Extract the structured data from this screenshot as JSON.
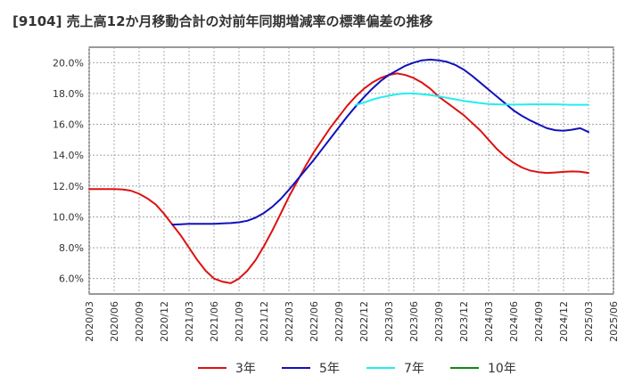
{
  "chart_data": {
    "type": "line",
    "title": "[9104]  売上高12か月移動合計の対前年同期増減率の標準偏差の推移",
    "xlabel": "",
    "ylabel": "",
    "x": [
      "2020/03",
      "2020/06",
      "2020/09",
      "2020/12",
      "2021/03",
      "2021/06",
      "2021/09",
      "2021/12",
      "2022/03",
      "2022/06",
      "2022/09",
      "2022/12",
      "2023/03",
      "2023/06",
      "2023/09",
      "2023/12",
      "2024/03",
      "2024/06",
      "2024/09",
      "2024/12",
      "2025/03",
      "2025/06"
    ],
    "ylim": [
      5.0,
      21.0
    ],
    "yticks": [
      6,
      8,
      10,
      12,
      14,
      16,
      18,
      20
    ],
    "ytick_labels": [
      "6.0%",
      "8.0%",
      "10.0%",
      "12.0%",
      "14.0%",
      "16.0%",
      "18.0%",
      "20.0%"
    ],
    "grid": true,
    "legend_position": "bottom",
    "series": [
      {
        "name": "3年",
        "color": "#dd1111",
        "points": [
          [
            "2020/03",
            11.8
          ],
          [
            "2020/04",
            11.8
          ],
          [
            "2020/05",
            11.8
          ],
          [
            "2020/06",
            11.8
          ],
          [
            "2020/07",
            11.78
          ],
          [
            "2020/08",
            11.7
          ],
          [
            "2020/09",
            11.5
          ],
          [
            "2020/10",
            11.2
          ],
          [
            "2020/11",
            10.8
          ],
          [
            "2020/12",
            10.2
          ],
          [
            "2021/01",
            9.5
          ],
          [
            "2021/02",
            8.8
          ],
          [
            "2021/03",
            8.0
          ],
          [
            "2021/04",
            7.2
          ],
          [
            "2021/05",
            6.5
          ],
          [
            "2021/06",
            6.0
          ],
          [
            "2021/07",
            5.8
          ],
          [
            "2021/08",
            5.7
          ],
          [
            "2021/09",
            6.0
          ],
          [
            "2021/10",
            6.5
          ],
          [
            "2021/11",
            7.2
          ],
          [
            "2021/12",
            8.1
          ],
          [
            "2022/01",
            9.1
          ],
          [
            "2022/02",
            10.2
          ],
          [
            "2022/03",
            11.3
          ],
          [
            "2022/04",
            12.3
          ],
          [
            "2022/05",
            13.3
          ],
          [
            "2022/06",
            14.2
          ],
          [
            "2022/07",
            15.0
          ],
          [
            "2022/08",
            15.8
          ],
          [
            "2022/09",
            16.5
          ],
          [
            "2022/10",
            17.2
          ],
          [
            "2022/11",
            17.8
          ],
          [
            "2022/12",
            18.3
          ],
          [
            "2023/01",
            18.7
          ],
          [
            "2023/02",
            19.0
          ],
          [
            "2023/03",
            19.2
          ],
          [
            "2023/04",
            19.3
          ],
          [
            "2023/05",
            19.2
          ],
          [
            "2023/06",
            19.0
          ],
          [
            "2023/07",
            18.7
          ],
          [
            "2023/08",
            18.3
          ],
          [
            "2023/09",
            17.8
          ],
          [
            "2023/10",
            17.4
          ],
          [
            "2023/11",
            17.0
          ],
          [
            "2023/12",
            16.6
          ],
          [
            "2024/01",
            16.1
          ],
          [
            "2024/02",
            15.6
          ],
          [
            "2024/03",
            15.0
          ],
          [
            "2024/04",
            14.4
          ],
          [
            "2024/05",
            13.9
          ],
          [
            "2024/06",
            13.5
          ],
          [
            "2024/07",
            13.2
          ],
          [
            "2024/08",
            13.0
          ],
          [
            "2024/09",
            12.9
          ],
          [
            "2024/10",
            12.85
          ],
          [
            "2024/11",
            12.88
          ],
          [
            "2024/12",
            12.92
          ],
          [
            "2025/01",
            12.95
          ],
          [
            "2025/02",
            12.93
          ],
          [
            "2025/03",
            12.85
          ]
        ]
      },
      {
        "name": "5年",
        "color": "#1111bb",
        "points": [
          [
            "2021/01",
            9.5
          ],
          [
            "2021/02",
            9.52
          ],
          [
            "2021/03",
            9.55
          ],
          [
            "2021/04",
            9.55
          ],
          [
            "2021/05",
            9.55
          ],
          [
            "2021/06",
            9.55
          ],
          [
            "2021/07",
            9.58
          ],
          [
            "2021/08",
            9.6
          ],
          [
            "2021/09",
            9.65
          ],
          [
            "2021/10",
            9.75
          ],
          [
            "2021/11",
            9.95
          ],
          [
            "2021/12",
            10.25
          ],
          [
            "2022/01",
            10.65
          ],
          [
            "2022/02",
            11.15
          ],
          [
            "2022/03",
            11.75
          ],
          [
            "2022/04",
            12.4
          ],
          [
            "2022/05",
            13.05
          ],
          [
            "2022/06",
            13.7
          ],
          [
            "2022/07",
            14.4
          ],
          [
            "2022/08",
            15.1
          ],
          [
            "2022/09",
            15.8
          ],
          [
            "2022/10",
            16.5
          ],
          [
            "2022/11",
            17.15
          ],
          [
            "2022/12",
            17.75
          ],
          [
            "2023/01",
            18.3
          ],
          [
            "2023/02",
            18.8
          ],
          [
            "2023/03",
            19.2
          ],
          [
            "2023/04",
            19.5
          ],
          [
            "2023/05",
            19.8
          ],
          [
            "2023/06",
            20.0
          ],
          [
            "2023/07",
            20.15
          ],
          [
            "2023/08",
            20.2
          ],
          [
            "2023/09",
            20.15
          ],
          [
            "2023/10",
            20.05
          ],
          [
            "2023/11",
            19.85
          ],
          [
            "2023/12",
            19.55
          ],
          [
            "2024/01",
            19.15
          ],
          [
            "2024/02",
            18.7
          ],
          [
            "2024/03",
            18.25
          ],
          [
            "2024/04",
            17.8
          ],
          [
            "2024/05",
            17.35
          ],
          [
            "2024/06",
            16.9
          ],
          [
            "2024/07",
            16.55
          ],
          [
            "2024/08",
            16.25
          ],
          [
            "2024/09",
            16.0
          ],
          [
            "2024/10",
            15.75
          ],
          [
            "2024/11",
            15.62
          ],
          [
            "2024/12",
            15.58
          ],
          [
            "2025/01",
            15.65
          ],
          [
            "2025/02",
            15.75
          ],
          [
            "2025/03",
            15.5
          ]
        ]
      },
      {
        "name": "7年",
        "color": "#22eeee",
        "points": [
          [
            "2022/11",
            17.25
          ],
          [
            "2022/12",
            17.4
          ],
          [
            "2023/01",
            17.6
          ],
          [
            "2023/02",
            17.75
          ],
          [
            "2023/03",
            17.85
          ],
          [
            "2023/04",
            17.95
          ],
          [
            "2023/05",
            18.0
          ],
          [
            "2023/06",
            18.0
          ],
          [
            "2023/07",
            17.95
          ],
          [
            "2023/08",
            17.9
          ],
          [
            "2023/09",
            17.82
          ],
          [
            "2023/10",
            17.72
          ],
          [
            "2023/11",
            17.62
          ],
          [
            "2023/12",
            17.52
          ],
          [
            "2024/01",
            17.45
          ],
          [
            "2024/02",
            17.38
          ],
          [
            "2024/03",
            17.32
          ],
          [
            "2024/04",
            17.3
          ],
          [
            "2024/05",
            17.28
          ],
          [
            "2024/06",
            17.28
          ],
          [
            "2024/07",
            17.28
          ],
          [
            "2024/08",
            17.3
          ],
          [
            "2024/09",
            17.3
          ],
          [
            "2024/10",
            17.3
          ],
          [
            "2024/11",
            17.3
          ],
          [
            "2024/12",
            17.28
          ],
          [
            "2025/01",
            17.27
          ],
          [
            "2025/02",
            17.27
          ],
          [
            "2025/03",
            17.27
          ]
        ]
      },
      {
        "name": "10年",
        "color": "#118811",
        "points": []
      }
    ]
  }
}
